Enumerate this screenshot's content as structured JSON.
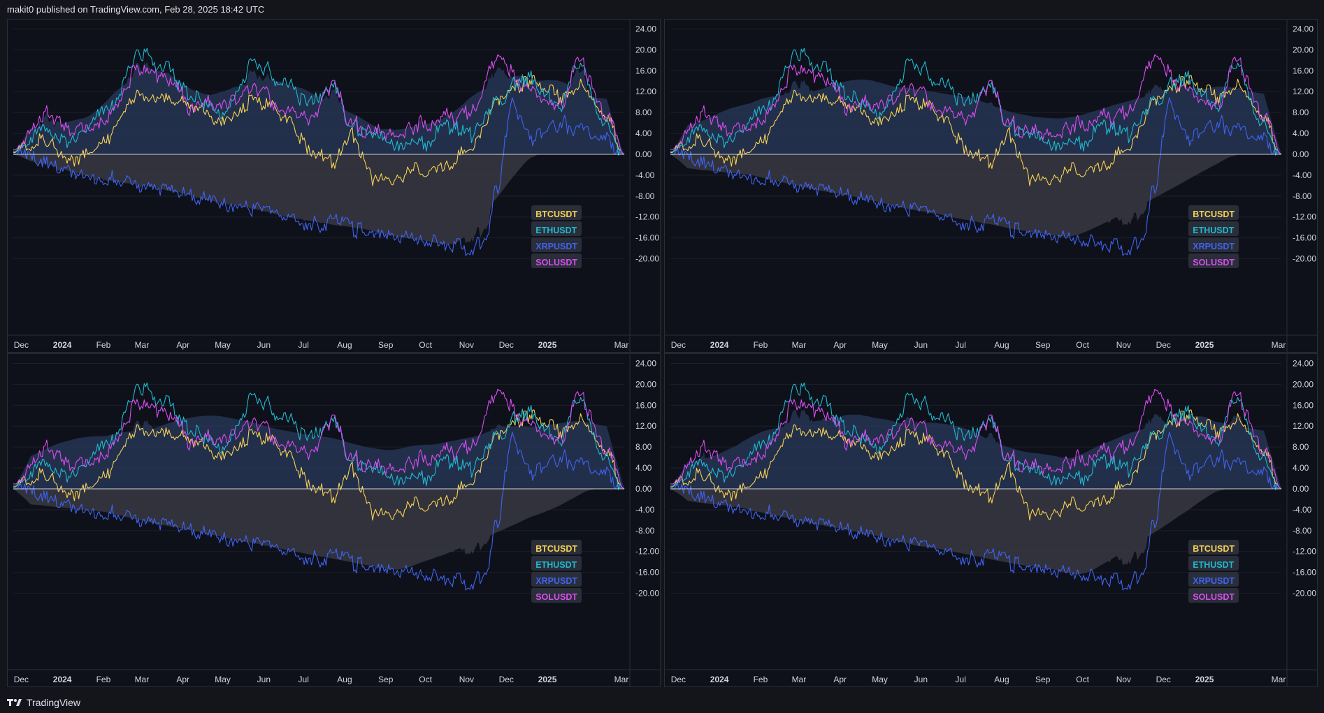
{
  "header": {
    "attribution": "makit0 published on TradingView.com, Feb 28, 2025 18:42 UTC"
  },
  "footer": {
    "brand": "TradingView"
  },
  "colors": {
    "background": "#0f111a",
    "grid": "#1c1f2b",
    "zero_line": "#cfd3dc",
    "upper_band_fill": "#2a3a5c",
    "lower_band_fill": "#3a3b45",
    "BTCUSDT": "#f7d154",
    "ETHUSDT": "#1fb8cf",
    "XRPUSDT": "#3f63f2",
    "SOLUSDT": "#d94cf0"
  },
  "legend": [
    "BTCUSDT",
    "ETHUSDT",
    "XRPUSDT",
    "SOLUSDT"
  ],
  "x_axis_labels": [
    "Dec",
    "2024",
    "Feb",
    "Mar",
    "Apr",
    "May",
    "Jun",
    "Jul",
    "Aug",
    "Sep",
    "Oct",
    "Nov",
    "Dec",
    "2025",
    "Mar"
  ],
  "y_axis_labels": [
    "24.00",
    "20.00",
    "16.00",
    "12.00",
    "8.00",
    "4.00",
    "0.00",
    "-4.00",
    "-8.00",
    "-12.00",
    "-16.00",
    "-20.00"
  ],
  "chart_data": [
    {
      "type": "line",
      "ylim": [
        -23,
        25
      ],
      "x_range": [
        "2023-11-25",
        "2025-02-28"
      ],
      "band_style": "tight",
      "series": [
        {
          "name": "BTCUSDT",
          "x": [
            "2023-11-25",
            "2023-12-20",
            "2024-01-10",
            "2024-02-01",
            "2024-03-01",
            "2024-03-15",
            "2024-04-10",
            "2024-05-01",
            "2024-05-25",
            "2024-06-20",
            "2024-07-05",
            "2024-07-25",
            "2024-08-05",
            "2024-08-25",
            "2024-09-10",
            "2024-10-01",
            "2024-10-20",
            "2024-11-05",
            "2024-11-25",
            "2024-12-15",
            "2025-01-10",
            "2025-01-25",
            "2025-02-15",
            "2025-02-28"
          ],
          "y": [
            0.5,
            3.0,
            -1.5,
            3.0,
            12.0,
            11.5,
            9.0,
            6.0,
            10.5,
            7.0,
            1.0,
            -1.5,
            4.0,
            -4.5,
            -4.0,
            -3.0,
            -2.0,
            1.0,
            10.0,
            14.0,
            11.5,
            12.5,
            7.5,
            0.0
          ]
        },
        {
          "name": "ETHUSDT",
          "x": [
            "2023-11-25",
            "2023-12-20",
            "2024-01-10",
            "2024-02-01",
            "2024-03-01",
            "2024-03-15",
            "2024-04-10",
            "2024-05-01",
            "2024-05-25",
            "2024-06-20",
            "2024-07-05",
            "2024-07-25",
            "2024-08-05",
            "2024-08-25",
            "2024-09-10",
            "2024-10-01",
            "2024-10-20",
            "2024-11-05",
            "2024-11-25",
            "2024-12-15",
            "2025-01-10",
            "2025-01-25",
            "2025-02-15",
            "2025-02-28"
          ],
          "y": [
            0.5,
            4.0,
            3.0,
            7.5,
            19.0,
            17.0,
            11.0,
            8.0,
            17.5,
            13.0,
            10.0,
            12.0,
            5.0,
            3.5,
            2.0,
            2.5,
            5.0,
            4.0,
            10.5,
            15.0,
            10.0,
            17.0,
            5.0,
            0.0
          ]
        },
        {
          "name": "XRPUSDT",
          "x": [
            "2023-11-25",
            "2023-12-20",
            "2024-01-10",
            "2024-02-01",
            "2024-03-01",
            "2024-03-15",
            "2024-04-10",
            "2024-05-01",
            "2024-05-25",
            "2024-06-20",
            "2024-07-05",
            "2024-07-25",
            "2024-08-05",
            "2024-08-25",
            "2024-09-10",
            "2024-10-01",
            "2024-10-20",
            "2024-11-05",
            "2024-11-15",
            "2024-11-25",
            "2024-12-05",
            "2024-12-20",
            "2025-01-10",
            "2025-01-25",
            "2025-02-15",
            "2025-02-28"
          ],
          "y": [
            0.0,
            -1.5,
            -3.5,
            -5.0,
            -5.5,
            -6.0,
            -8.0,
            -9.5,
            -10.5,
            -12.0,
            -13.5,
            -13.0,
            -14.0,
            -15.0,
            -15.5,
            -16.5,
            -17.5,
            -18.5,
            -16.5,
            -6.0,
            10.0,
            3.0,
            6.0,
            5.0,
            3.5,
            0.0
          ]
        },
        {
          "name": "SOLUSDT",
          "x": [
            "2023-11-25",
            "2023-12-20",
            "2024-01-10",
            "2024-02-01",
            "2024-03-01",
            "2024-03-15",
            "2024-04-10",
            "2024-05-01",
            "2024-05-25",
            "2024-06-20",
            "2024-07-05",
            "2024-07-25",
            "2024-08-05",
            "2024-08-25",
            "2024-09-10",
            "2024-10-01",
            "2024-10-20",
            "2024-11-05",
            "2024-11-25",
            "2024-12-15",
            "2025-01-10",
            "2025-01-25",
            "2025-02-15",
            "2025-02-28"
          ],
          "y": [
            1.0,
            8.0,
            5.0,
            6.5,
            16.5,
            15.0,
            9.0,
            10.0,
            13.0,
            8.5,
            7.0,
            13.0,
            6.0,
            4.0,
            4.5,
            6.0,
            7.5,
            8.0,
            18.5,
            13.0,
            9.0,
            18.0,
            8.0,
            0.0
          ]
        }
      ]
    },
    {
      "type": "line",
      "ylim": [
        -23,
        25
      ],
      "x_range": [
        "2023-11-25",
        "2025-02-28"
      ],
      "band_style": "smooth",
      "series": "same as chart 1"
    },
    {
      "type": "line",
      "ylim": [
        -23,
        25
      ],
      "x_range": [
        "2023-11-25",
        "2025-02-28"
      ],
      "band_style": "very-smooth",
      "series": "same as chart 1"
    },
    {
      "type": "line",
      "ylim": [
        -23,
        25
      ],
      "x_range": [
        "2023-11-25",
        "2025-02-28"
      ],
      "band_style": "medium",
      "series": "same as chart 1"
    }
  ]
}
